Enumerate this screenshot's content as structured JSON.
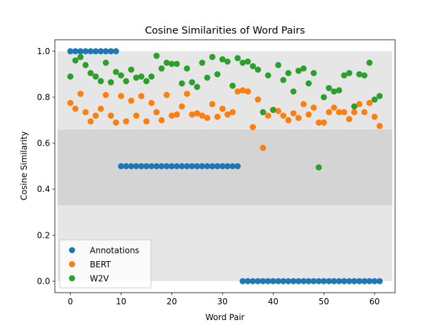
{
  "chart_data": {
    "type": "scatter",
    "title": "Cosine Similarities of Word Pairs",
    "xlabel": "Word Pair",
    "ylabel": "Cosine Similarity",
    "xlim": [
      -3.05,
      64.05
    ],
    "ylim": [
      -0.05,
      1.05
    ],
    "xticks": [
      0,
      10,
      20,
      30,
      40,
      50,
      60
    ],
    "yticks": [
      0.0,
      0.2,
      0.4,
      0.6,
      0.8,
      1.0
    ],
    "grid": false,
    "legend_position": "lower-left",
    "bands": [
      {
        "from": 0.0,
        "to": 0.33,
        "color": "#e6e6e6"
      },
      {
        "from": 0.33,
        "to": 0.66,
        "color": "#d4d4d4"
      },
      {
        "from": 0.66,
        "to": 1.0,
        "color": "#e6e6e6"
      }
    ],
    "x": [
      0,
      1,
      2,
      3,
      4,
      5,
      6,
      7,
      8,
      9,
      10,
      11,
      12,
      13,
      14,
      15,
      16,
      17,
      18,
      19,
      20,
      21,
      22,
      23,
      24,
      25,
      26,
      27,
      28,
      29,
      30,
      31,
      32,
      33,
      34,
      35,
      36,
      37,
      38,
      39,
      40,
      41,
      42,
      43,
      44,
      45,
      46,
      47,
      48,
      49,
      50,
      51,
      52,
      53,
      54,
      55,
      56,
      57,
      58,
      59,
      60,
      61
    ],
    "series": [
      {
        "name": "Annotations",
        "color": "#1f77b4",
        "values": [
          1,
          1,
          1,
          1,
          1,
          1,
          1,
          1,
          1,
          1,
          0.5,
          0.5,
          0.5,
          0.5,
          0.5,
          0.5,
          0.5,
          0.5,
          0.5,
          0.5,
          0.5,
          0.5,
          0.5,
          0.5,
          0.5,
          0.5,
          0.5,
          0.5,
          0.5,
          0.5,
          0.5,
          0.5,
          0.5,
          0.5,
          0,
          0,
          0,
          0,
          0,
          0,
          0,
          0,
          0,
          0,
          0,
          0,
          0,
          0,
          0,
          0,
          0,
          0,
          0,
          0,
          0,
          0,
          0,
          0,
          0,
          0,
          0,
          0
        ]
      },
      {
        "name": "BERT",
        "color": "#ff7f0e",
        "values": [
          0.775,
          0.75,
          0.815,
          0.735,
          0.695,
          0.72,
          0.75,
          0.81,
          0.72,
          0.69,
          0.805,
          0.695,
          0.785,
          0.72,
          0.805,
          0.695,
          0.775,
          0.735,
          0.7,
          0.81,
          0.72,
          0.725,
          0.76,
          0.815,
          0.725,
          0.73,
          0.72,
          0.71,
          0.77,
          0.715,
          0.75,
          0.725,
          0.735,
          0.825,
          0.83,
          0.825,
          0.67,
          0.79,
          0.58,
          0.72,
          0.745,
          0.74,
          0.72,
          0.7,
          0.73,
          0.71,
          0.77,
          0.725,
          0.755,
          0.69,
          0.69,
          0.735,
          0.755,
          0.735,
          0.735,
          0.705,
          0.735,
          0.77,
          0.735,
          0.775,
          0.715,
          0.675
        ]
      },
      {
        "name": "W2V",
        "color": "#2ca02c",
        "values": [
          0.89,
          0.96,
          0.975,
          0.94,
          0.905,
          0.89,
          0.87,
          0.95,
          0.865,
          0.91,
          0.895,
          0.87,
          0.92,
          0.885,
          0.89,
          0.87,
          0.89,
          0.98,
          0.925,
          0.95,
          0.945,
          0.945,
          0.86,
          0.925,
          0.865,
          0.845,
          0.95,
          0.885,
          0.975,
          0.9,
          0.965,
          0.955,
          0.85,
          0.97,
          0.95,
          0.955,
          0.935,
          0.92,
          0.735,
          0.895,
          0.745,
          0.94,
          0.875,
          0.905,
          0.825,
          0.915,
          0.925,
          0.86,
          0.905,
          0.495,
          0.8,
          0.84,
          0.825,
          0.83,
          0.895,
          0.905,
          0.76,
          0.9,
          0.895,
          0.95,
          0.79,
          0.805
        ]
      }
    ]
  }
}
